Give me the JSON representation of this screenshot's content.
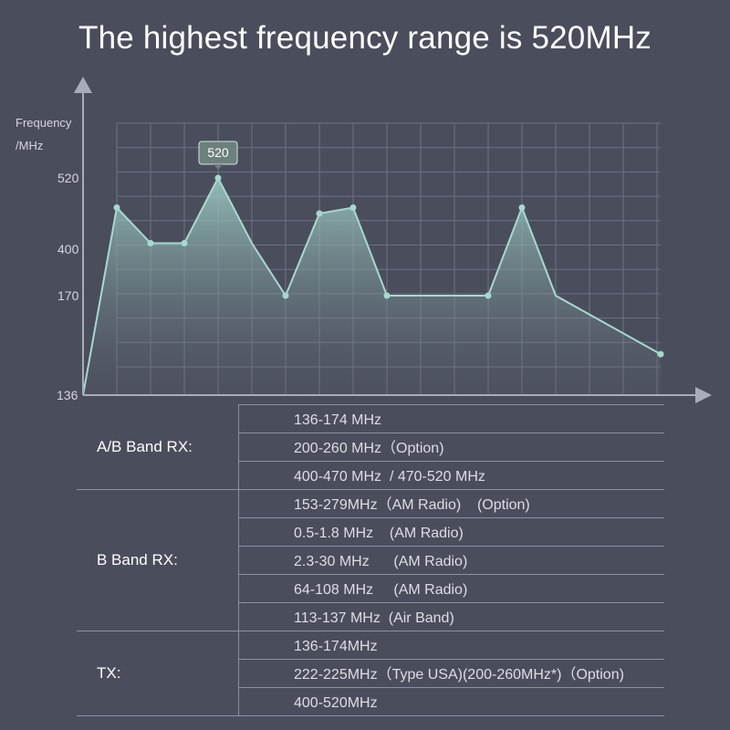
{
  "headline": "The highest frequency range is 520MHz",
  "chart_data": {
    "type": "area",
    "ylabel_line1": "Frequency",
    "ylabel_line2": "/MHz",
    "y_ticks": [
      "136",
      "170",
      "400",
      "520"
    ],
    "points": [
      136,
      470,
      410,
      410,
      520,
      410,
      170,
      460,
      470,
      170,
      170,
      170,
      170,
      470,
      170,
      150
    ],
    "callout": {
      "label": "520",
      "point_index": 4
    },
    "grid": true,
    "colors": {
      "line": "#a8d8cf",
      "fill_top": "#9fd0c6",
      "fill_bottom": "#5d6472",
      "grid": "#6e7282",
      "axis": "#a9adbb",
      "callout_bg": "#6d807e"
    }
  },
  "spec_table": {
    "groups": [
      {
        "label": "A/B Band RX:",
        "rows": [
          "136-174 MHz",
          "200-260 MHz（Option)",
          "400-470 MHz  / 470-520 MHz"
        ]
      },
      {
        "label": "B Band RX:",
        "rows": [
          "153-279MHz（AM Radio)    (Option)",
          "0.5-1.8 MHz    (AM Radio)",
          "2.3-30 MHz      (AM Radio)",
          "64-108 MHz     (AM Radio)",
          "113-137 MHz  (Air Band)"
        ]
      },
      {
        "label": "TX:",
        "rows": [
          "136-174MHz",
          "222-225MHz（Type USA)(200-260MHz*)（Option)",
          "400-520MHz"
        ]
      }
    ]
  }
}
